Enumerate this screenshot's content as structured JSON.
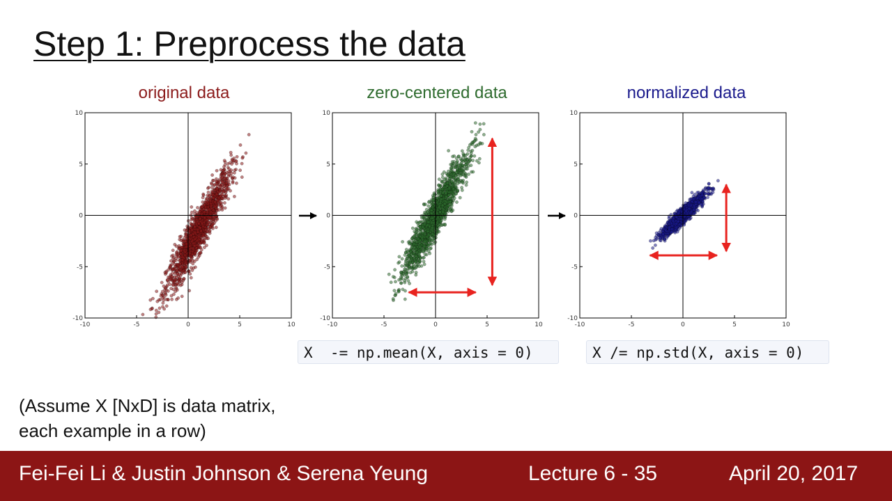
{
  "slide": {
    "title": "Step 1: Preprocess the data",
    "code_mean": "X  -= np.mean(X, axis = 0)",
    "code_std": "X /= np.std(X, axis = 0)",
    "note_line1": "(Assume X [NxD] is data matrix,",
    "note_line2": "each example in a row)"
  },
  "footer": {
    "authors": "Fei-Fei Li & Justin Johnson & Serena Yeung",
    "lecture": "Lecture 6 - 35",
    "date": "April 20, 2017"
  },
  "colors": {
    "original": "#8b1a1a",
    "zero_centered": "#2e6b2e",
    "normalized": "#1a1a8c",
    "arrow": "#e8231f",
    "footer_bg": "#8c1515"
  },
  "chart_data": [
    {
      "type": "scatter",
      "title": "original data",
      "color": "#8b1a1a",
      "xlim": [
        -10,
        10
      ],
      "ylim": [
        -10,
        10
      ],
      "xticks": [
        "-10",
        "-5",
        "0",
        "5",
        "10"
      ],
      "yticks": [
        "-10",
        "-5",
        "0",
        "5",
        "10"
      ],
      "center": [
        1,
        -1.5
      ],
      "sx": 1.55,
      "sy": 2.9,
      "corr": 0.93,
      "n": 1500
    },
    {
      "type": "scatter",
      "title": "zero-centered data",
      "color": "#2e6b2e",
      "xlim": [
        -10,
        10
      ],
      "ylim": [
        -10,
        10
      ],
      "xticks": [
        "-10",
        "-5",
        "0",
        "5",
        "10"
      ],
      "yticks": [
        "-10",
        "-5",
        "0",
        "5",
        "10"
      ],
      "center": [
        0,
        0
      ],
      "sx": 1.55,
      "sy": 2.9,
      "corr": 0.93,
      "n": 1500,
      "arrows": [
        {
          "orientation": "vertical",
          "x": 5.5,
          "from": -6.8,
          "to": 7.5
        },
        {
          "orientation": "horizontal",
          "y": -7.5,
          "from": -2.6,
          "to": 3.9
        }
      ]
    },
    {
      "type": "scatter",
      "title": "normalized data",
      "color": "#1a1a8c",
      "xlim": [
        -10,
        10
      ],
      "ylim": [
        -10,
        10
      ],
      "xticks": [
        "-10",
        "-5",
        "0",
        "5",
        "10"
      ],
      "yticks": [
        "-10",
        "-5",
        "0",
        "5",
        "10"
      ],
      "center": [
        0,
        0
      ],
      "sx": 1.0,
      "sy": 1.0,
      "corr": 0.93,
      "n": 1500,
      "arrows": [
        {
          "orientation": "vertical",
          "x": 4.2,
          "from": -3.5,
          "to": 3.0
        },
        {
          "orientation": "horizontal",
          "y": -3.9,
          "from": -3.2,
          "to": 3.3
        }
      ]
    }
  ]
}
